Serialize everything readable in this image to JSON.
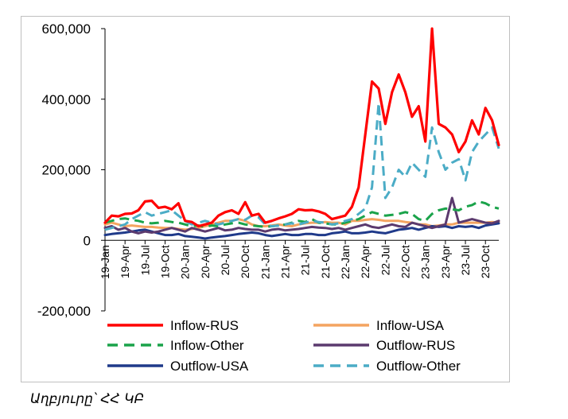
{
  "chart_data": {
    "type": "line",
    "title": "",
    "xlabel": "",
    "ylabel": "",
    "ylim": [
      -200000,
      600000
    ],
    "y_ticks": [
      -200000,
      0,
      200000,
      400000,
      600000
    ],
    "y_tick_labels": [
      "-200,000",
      "0",
      "200,000",
      "400,000",
      "600,000"
    ],
    "x_tick_labels": [
      "19-Jan",
      "19-Apr",
      "19-Jul",
      "19-Oct",
      "20-Jan",
      "20-Apr",
      "20-Jul",
      "20-Oct",
      "21-Jan",
      "21-Apr",
      "21-Jul",
      "21-Oct",
      "22-Jan",
      "22-Apr",
      "22-Jul",
      "22-Oct",
      "23-Jan",
      "23-Apr",
      "23-Jul",
      "23-Oct"
    ],
    "x_tick_months": [
      0,
      3,
      6,
      9,
      12,
      15,
      18,
      21,
      24,
      27,
      30,
      33,
      36,
      39,
      42,
      45,
      48,
      51,
      54,
      57
    ],
    "months_count": 60,
    "grid": false,
    "legend_position": "bottom",
    "series": [
      {
        "name": "Inflow-RUS",
        "color": "#ff0000",
        "dash": "solid",
        "values": [
          50000,
          70000,
          68000,
          75000,
          76000,
          85000,
          110000,
          112000,
          92000,
          95000,
          88000,
          105000,
          55000,
          52000,
          40000,
          45000,
          50000,
          70000,
          80000,
          85000,
          75000,
          108000,
          70000,
          75000,
          50000,
          55000,
          62000,
          68000,
          75000,
          88000,
          85000,
          86000,
          82000,
          75000,
          60000,
          65000,
          70000,
          95000,
          150000,
          300000,
          450000,
          430000,
          330000,
          420000,
          470000,
          420000,
          350000,
          380000,
          280000,
          600000,
          330000,
          320000,
          300000,
          250000,
          280000,
          340000,
          300000,
          375000,
          340000,
          270000
        ]
      },
      {
        "name": "Inflow-USA",
        "color": "#f4a460",
        "dash": "solid",
        "values": [
          45000,
          50000,
          45000,
          40000,
          42000,
          40000,
          38000,
          38000,
          36000,
          35000,
          35000,
          32000,
          30000,
          32000,
          35000,
          40000,
          45000,
          50000,
          55000,
          55000,
          60000,
          55000,
          45000,
          40000,
          40000,
          42000,
          45000,
          42000,
          40000,
          45000,
          48000,
          50000,
          50000,
          52000,
          50000,
          50000,
          45000,
          55000,
          55000,
          58000,
          60000,
          58000,
          55000,
          55000,
          55000,
          52000,
          50000,
          45000,
          45000,
          40000,
          42000,
          45000,
          45000,
          50000,
          50000,
          50000,
          50000,
          50000,
          52000,
          50000
        ]
      },
      {
        "name": "Inflow-Other",
        "color": "#1aa34a",
        "dash": "dashed",
        "values": [
          50000,
          55000,
          60000,
          62000,
          58000,
          55000,
          50000,
          48000,
          50000,
          55000,
          52000,
          50000,
          45000,
          40000,
          42000,
          38000,
          42000,
          40000,
          45000,
          48000,
          50000,
          45000,
          42000,
          40000,
          38000,
          40000,
          42000,
          45000,
          50000,
          55000,
          52000,
          60000,
          50000,
          48000,
          45000,
          45000,
          50000,
          55000,
          60000,
          70000,
          80000,
          75000,
          70000,
          72000,
          75000,
          80000,
          75000,
          60000,
          55000,
          75000,
          85000,
          90000,
          88000,
          85000,
          95000,
          100000,
          110000,
          105000,
          95000,
          90000
        ]
      },
      {
        "name": "Outflow-RUS",
        "color": "#5b3a6e",
        "dash": "solid",
        "values": [
          35000,
          40000,
          30000,
          35000,
          25000,
          20000,
          25000,
          22000,
          25000,
          30000,
          35000,
          30000,
          25000,
          35000,
          30000,
          25000,
          30000,
          35000,
          28000,
          30000,
          35000,
          32000,
          30000,
          30000,
          25000,
          30000,
          32000,
          28000,
          30000,
          32000,
          35000,
          38000,
          36000,
          35000,
          32000,
          35000,
          30000,
          35000,
          40000,
          45000,
          38000,
          35000,
          40000,
          45000,
          40000,
          38000,
          50000,
          45000,
          40000,
          35000,
          40000,
          45000,
          120000,
          50000,
          55000,
          60000,
          55000,
          50000,
          48000,
          55000
        ]
      },
      {
        "name": "Outflow-USA",
        "color": "#1f3a8a",
        "dash": "solid",
        "values": [
          15000,
          18000,
          20000,
          22000,
          25000,
          28000,
          30000,
          25000,
          20000,
          15000,
          15000,
          18000,
          12000,
          10000,
          8000,
          5000,
          8000,
          10000,
          12000,
          15000,
          18000,
          20000,
          22000,
          20000,
          15000,
          12000,
          15000,
          18000,
          15000,
          15000,
          18000,
          18000,
          15000,
          15000,
          20000,
          22000,
          25000,
          20000,
          20000,
          22000,
          25000,
          22000,
          20000,
          25000,
          30000,
          32000,
          35000,
          30000,
          35000,
          40000,
          38000,
          40000,
          35000,
          40000,
          38000,
          40000,
          35000,
          42000,
          45000,
          48000
        ]
      },
      {
        "name": "Outflow-Other",
        "color": "#4bacc6",
        "dash": "dashed",
        "values": [
          30000,
          35000,
          40000,
          45000,
          60000,
          70000,
          80000,
          70000,
          75000,
          80000,
          85000,
          70000,
          55000,
          45000,
          50000,
          55000,
          50000,
          45000,
          50000,
          55000,
          60000,
          58000,
          70000,
          65000,
          45000,
          40000,
          42000,
          45000,
          48000,
          45000,
          50000,
          55000,
          52000,
          50000,
          45000,
          48000,
          55000,
          60000,
          75000,
          90000,
          150000,
          390000,
          120000,
          150000,
          200000,
          180000,
          220000,
          200000,
          180000,
          320000,
          250000,
          200000,
          220000,
          230000,
          170000,
          250000,
          280000,
          300000,
          320000,
          260000
        ]
      }
    ]
  },
  "source_text": "Աղբյուրը՝ ՀՀ ԿԲ"
}
